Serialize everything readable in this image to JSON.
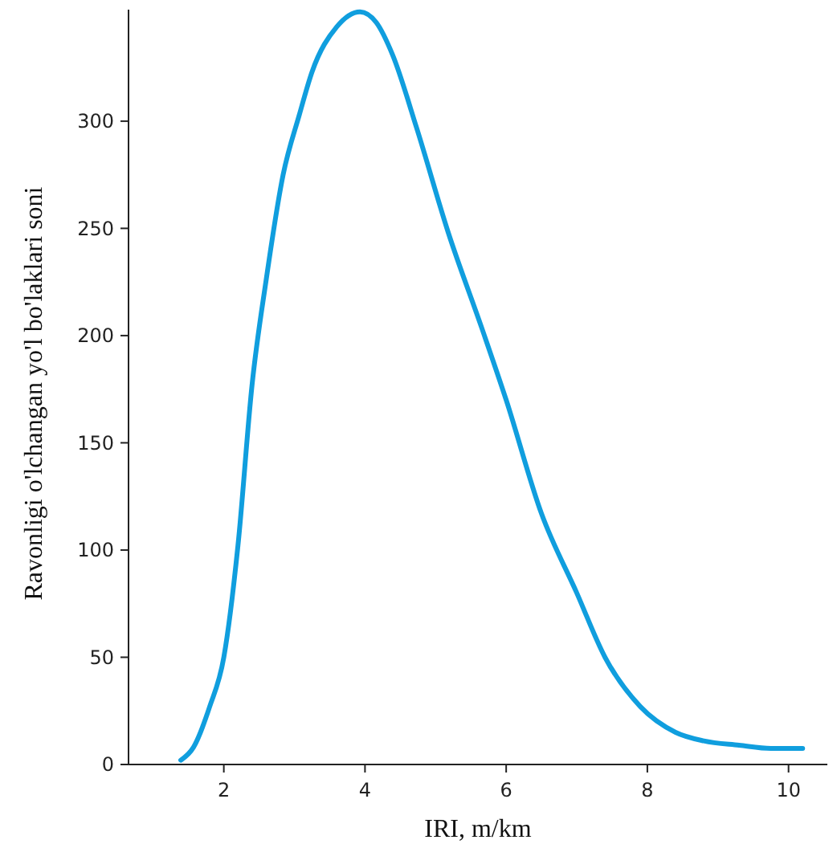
{
  "chart_data": {
    "type": "line",
    "xlabel": "IRI, m/km",
    "ylabel": "Ravonligi o'lchangan yo'l bo'laklari soni",
    "xlim": [
      0.65,
      10.55
    ],
    "ylim": [
      0,
      352
    ],
    "xticks": [
      2,
      4,
      6,
      8,
      10
    ],
    "yticks": [
      0,
      50,
      100,
      150,
      200,
      250,
      300
    ],
    "marker": "none",
    "line_style": "solid",
    "series": [
      {
        "color": "#109ede",
        "x": [
          1.39,
          1.57,
          1.8,
          2.0,
          2.2,
          2.4,
          2.6,
          2.84,
          3.07,
          3.25,
          3.6,
          3.93,
          4.16,
          4.39,
          4.73,
          5.18,
          5.66,
          6.0,
          6.5,
          7.0,
          7.4,
          7.9,
          8.4,
          8.8,
          9.3,
          9.75,
          10.2
        ],
        "values": [
          2,
          8,
          27,
          50,
          102,
          177,
          226,
          275,
          303,
          323,
          344,
          351,
          346,
          331,
          297,
          248,
          203,
          170,
          117,
          80,
          50,
          27,
          15,
          11,
          9,
          7.5,
          7.5
        ]
      }
    ]
  }
}
